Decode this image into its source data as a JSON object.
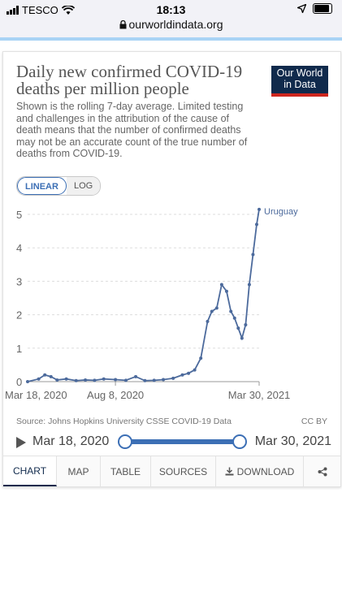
{
  "status": {
    "carrier": "TESCO",
    "time": "18:13",
    "url": "ourworldindata.org"
  },
  "header": {
    "title": "Daily new confirmed COVID-19 deaths per million people",
    "subtitle": "Shown is the rolling 7-day average. Limited testing and challenges in the attribution of the cause of death means that the number of confirmed deaths may not be an accurate count of the true number of deaths from COVID-19.",
    "logo_line1": "Our World",
    "logo_line2": "in Data"
  },
  "scale_toggle": {
    "linear": "LINEAR",
    "log": "LOG",
    "selected": "linear"
  },
  "chart_data": {
    "type": "line",
    "title": "Daily new confirmed COVID-19 deaths per million people",
    "xlabel": "",
    "ylabel": "",
    "ylim": [
      0,
      5
    ],
    "yticks": [
      "0",
      "1",
      "2",
      "3",
      "4",
      "5"
    ],
    "xticks": [
      "Mar 18, 2020",
      "Aug 8, 2020",
      "Mar 30, 2021"
    ],
    "grid": "horizontal dashed",
    "series": [
      {
        "name": "Uruguay",
        "color": "#4c6a9c",
        "x": [
          "2020-03-18",
          "2020-04-05",
          "2020-04-15",
          "2020-04-25",
          "2020-05-05",
          "2020-05-20",
          "2020-06-05",
          "2020-06-20",
          "2020-07-05",
          "2020-07-20",
          "2020-08-08",
          "2020-08-25",
          "2020-09-10",
          "2020-09-25",
          "2020-10-10",
          "2020-10-25",
          "2020-11-10",
          "2020-11-25",
          "2020-12-05",
          "2020-12-15",
          "2020-12-25",
          "2021-01-05",
          "2021-01-12",
          "2021-01-20",
          "2021-01-28",
          "2021-02-05",
          "2021-02-12",
          "2021-02-18",
          "2021-02-24",
          "2021-03-02",
          "2021-03-08",
          "2021-03-14",
          "2021-03-20",
          "2021-03-26",
          "2021-03-30"
        ],
        "values": [
          0.0,
          0.08,
          0.2,
          0.15,
          0.05,
          0.08,
          0.03,
          0.05,
          0.04,
          0.08,
          0.06,
          0.04,
          0.15,
          0.03,
          0.04,
          0.06,
          0.1,
          0.2,
          0.25,
          0.35,
          0.7,
          1.8,
          2.1,
          2.2,
          2.9,
          2.7,
          2.1,
          1.9,
          1.6,
          1.3,
          1.7,
          2.9,
          3.8,
          4.7,
          5.15
        ]
      }
    ]
  },
  "footer": {
    "source": "Source: Johns Hopkins University CSSE COVID-19 Data",
    "license": "CC BY",
    "timeline_start": "Mar 18, 2020",
    "timeline_end": "Mar 30, 2021"
  },
  "tabs": [
    {
      "label": "CHART"
    },
    {
      "label": "MAP"
    },
    {
      "label": "TABLE"
    },
    {
      "label": "SOURCES"
    },
    {
      "label": "DOWNLOAD"
    }
  ]
}
